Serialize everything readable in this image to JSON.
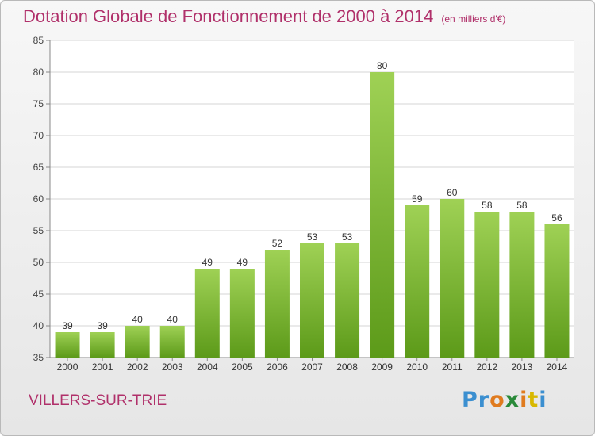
{
  "title": "Dotation Globale de Fonctionnement de 2000 à 2014",
  "subtitle": "(en milliers d'€)",
  "commune": "VILLERS-SUR-TRIE",
  "logo": {
    "text": "Proxiti",
    "letters": [
      "P",
      "r",
      "o",
      "x",
      "i",
      "t",
      "i"
    ],
    "colors": [
      "#3b8fd0",
      "#3b8fd0",
      "#e07b1f",
      "#2a8a3a",
      "#e07b1f",
      "#d8b800",
      "#3b8fd0"
    ]
  },
  "colors": {
    "title": "#b0306a",
    "bar_light": "#9fd155",
    "bar_dark": "#5c9a19"
  },
  "chart_data": {
    "type": "bar",
    "categories": [
      "2000",
      "2001",
      "2002",
      "2003",
      "2004",
      "2005",
      "2006",
      "2007",
      "2008",
      "2009",
      "2010",
      "2011",
      "2012",
      "2013",
      "2014"
    ],
    "values": [
      39,
      39,
      40,
      40,
      49,
      49,
      52,
      53,
      53,
      80,
      59,
      60,
      58,
      58,
      56
    ],
    "ylim": [
      35,
      85
    ],
    "yticks": [
      35,
      40,
      45,
      50,
      55,
      60,
      65,
      70,
      75,
      80,
      85
    ],
    "grid": true
  }
}
